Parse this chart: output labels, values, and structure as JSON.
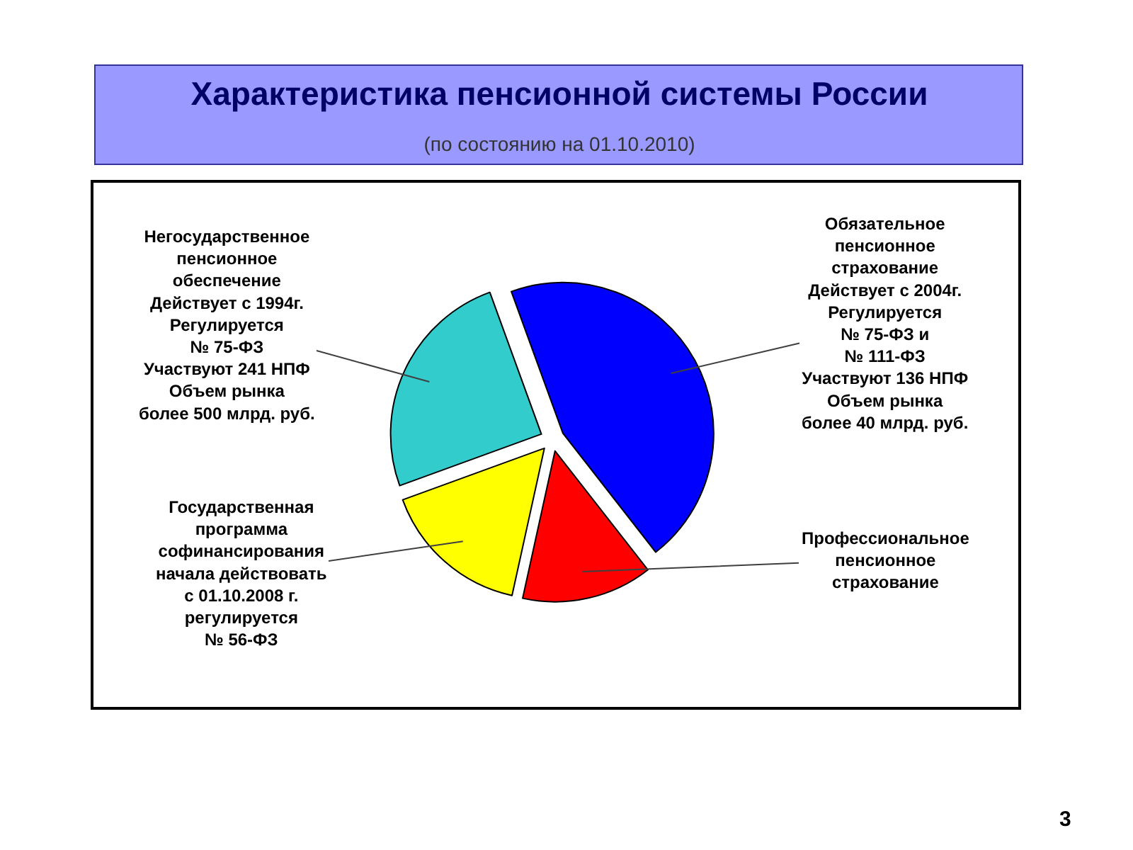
{
  "chart_data": {
    "type": "pie",
    "title": "Характеристика пенсионной системы России",
    "subtitle": "(по состоянию на 01.10.2010)",
    "categories": [
      "Обязательное\nпенсионное\nстрахование\nДействует с 2004г.\nРегулируется\n№ 75-ФЗ и\n№ 111-ФЗ\nУчаствуют 136 НПФ\nОбъем рынка\nболее 40 млрд. руб.",
      "Профессиональное\nпенсионное\nстрахование",
      "Государственная\nпрограмма\nсофинансирования\nначала действовать\nс 01.10.2008 г.\nрегулируется\n№ 56-ФЗ",
      "Негосударственное\nпенсионное\nобеспечение\nДействует с 1994г.\nРегулируется\n№ 75-ФЗ\nУчаствуют 241 НПФ\nОбъем рынка\nболее 500 млрд. руб."
    ],
    "values": [
      45,
      14,
      16,
      25
    ],
    "colors": [
      "#0000ff",
      "#ff0000",
      "#ffff00",
      "#33cccc"
    ],
    "legend": false,
    "annotations": [
      "3"
    ]
  }
}
